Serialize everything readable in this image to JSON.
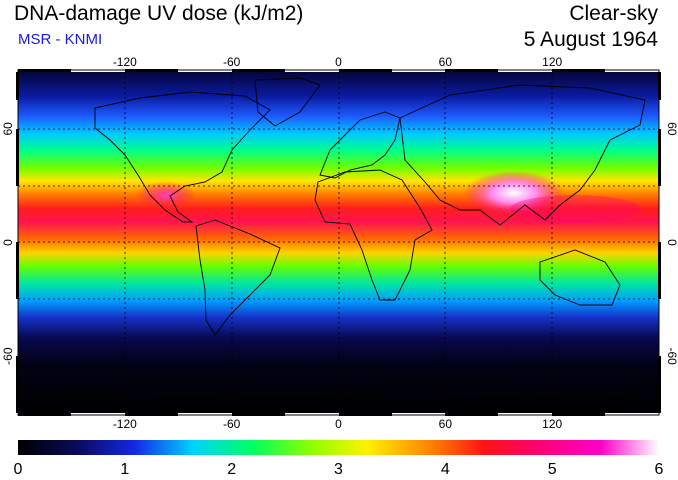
{
  "header": {
    "title": "DNA-damage UV dose (kJ/m2)",
    "subtitle": "MSR - KNMI",
    "sky": "Clear-sky",
    "date": "5 August 1964"
  },
  "map": {
    "lon_ticks": [
      -120,
      -60,
      0,
      60,
      120
    ],
    "lat_ticks": [
      60,
      0,
      -60
    ],
    "lon_range": [
      -180,
      180
    ],
    "lat_range": [
      -90,
      90
    ]
  },
  "colorbar": {
    "labels": [
      "0",
      "1",
      "2",
      "3",
      "4",
      "5",
      "6"
    ],
    "stops": [
      "#000000",
      "#0a0a5a",
      "#1428e6",
      "#00d2ff",
      "#00ff64",
      "#8cff00",
      "#fff000",
      "#ff8c00",
      "#ff1414",
      "#ff0078",
      "#ff00c8",
      "#ffffff"
    ]
  }
}
